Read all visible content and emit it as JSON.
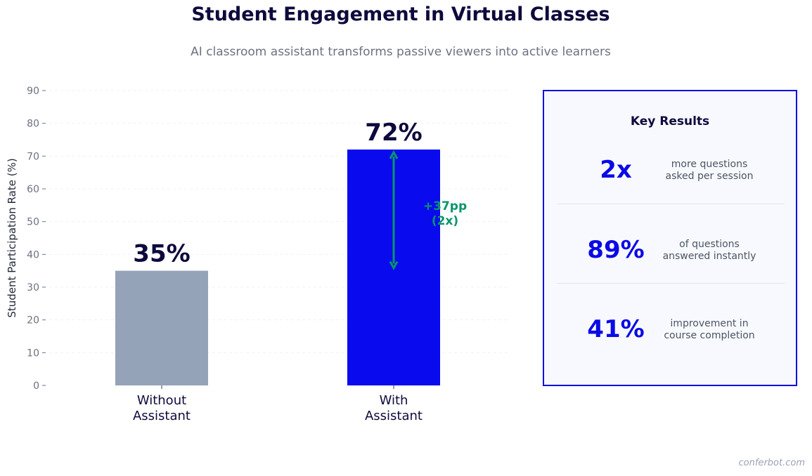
{
  "header": {
    "title": "Student Engagement in Virtual Classes",
    "subtitle": "AI classroom assistant transforms passive viewers into active learners"
  },
  "chart_data": {
    "type": "bar",
    "categories": [
      "Without\nAssistant",
      "With\nAssistant"
    ],
    "values": [
      35,
      72
    ],
    "value_labels": [
      "35%",
      "72%"
    ],
    "bar_colors": [
      "#94a3b8",
      "#0a0aee"
    ],
    "ylabel": "Student Participation Rate (%)",
    "ylim": [
      0,
      90
    ],
    "yticks": [
      0,
      10,
      20,
      30,
      40,
      50,
      60,
      70,
      80,
      90
    ],
    "grid": true,
    "annotation": {
      "text": "+37pp\n(2x)",
      "from": 35,
      "to": 72,
      "color": "#059669"
    }
  },
  "panel": {
    "title": "Key Results",
    "items": [
      {
        "value": "2x",
        "desc": "more questions\nasked per session"
      },
      {
        "value": "89%",
        "desc": "of questions\nanswered instantly"
      },
      {
        "value": "41%",
        "desc": "improvement in\ncourse completion"
      }
    ]
  },
  "footer": {
    "watermark": "conferbot.com"
  },
  "colors": {
    "accent": "#0a0ae6",
    "dark": "#0d0a3c",
    "muted": "#6b7280",
    "annotation": "#059669"
  }
}
